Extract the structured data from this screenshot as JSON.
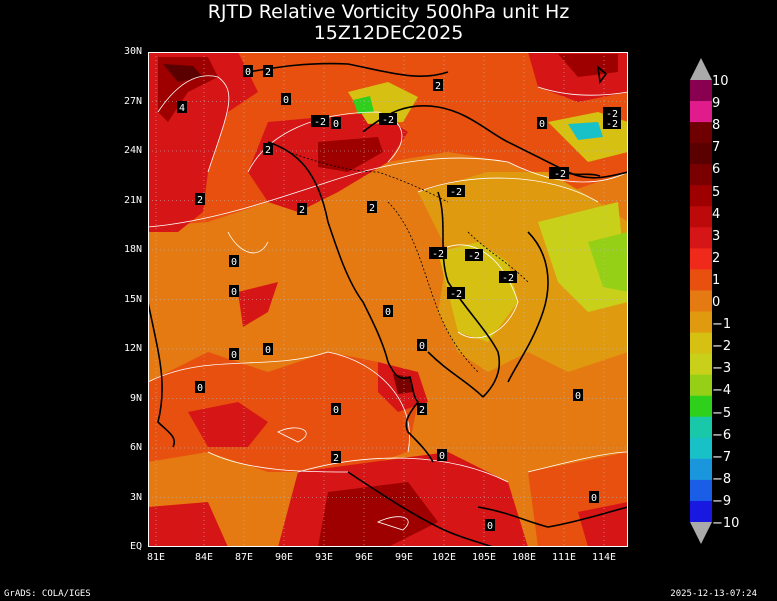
{
  "title": "RJTD Relative Vorticity 500hPa unit Hz",
  "subtitle": "15Z12DEC2025",
  "lat_labels": [
    "30N",
    "27N",
    "24N",
    "21N",
    "18N",
    "15N",
    "12N",
    "9N",
    "6N",
    "3N",
    "EQ"
  ],
  "lon_labels": [
    "81E",
    "84E",
    "87E",
    "90E",
    "93E",
    "96E",
    "99E",
    "102E",
    "105E",
    "108E",
    "111E",
    "114E"
  ],
  "colorbar": {
    "labels": [
      "10",
      "9",
      "8",
      "7",
      "6",
      "5",
      "4",
      "3",
      "2",
      "1",
      "0",
      "−1",
      "−2",
      "−3",
      "−4",
      "−5",
      "−6",
      "−7",
      "−8",
      "−9",
      "−10"
    ],
    "colors": [
      "#8a0050",
      "#e01c8c",
      "#6e0000",
      "#5a0000",
      "#7a0000",
      "#9e0000",
      "#bc0a0a",
      "#d61616",
      "#f02a1a",
      "#e85010",
      "#e67a12",
      "#e09a10",
      "#d6c012",
      "#c8d01a",
      "#96d016",
      "#2ed01c",
      "#18c8a8",
      "#18c0c8",
      "#1a96dc",
      "#1a5ee8",
      "#1818e0"
    ]
  },
  "contour_labels": [
    "0",
    "2",
    "4",
    "-2",
    "0",
    "-2",
    "-2",
    "2",
    "0",
    "2",
    "0",
    "-2",
    "2",
    "-2",
    "-2",
    "-2",
    "2",
    "2",
    "-2",
    "-2",
    "-2",
    "-2",
    "0",
    "0",
    "0",
    "0",
    "0",
    "0",
    "0",
    "0",
    "2",
    "0",
    "2",
    "0",
    "0",
    "0"
  ],
  "footer_left": "GrADS: COLA/IGES",
  "footer_right": "2025-12-13-07:24"
}
